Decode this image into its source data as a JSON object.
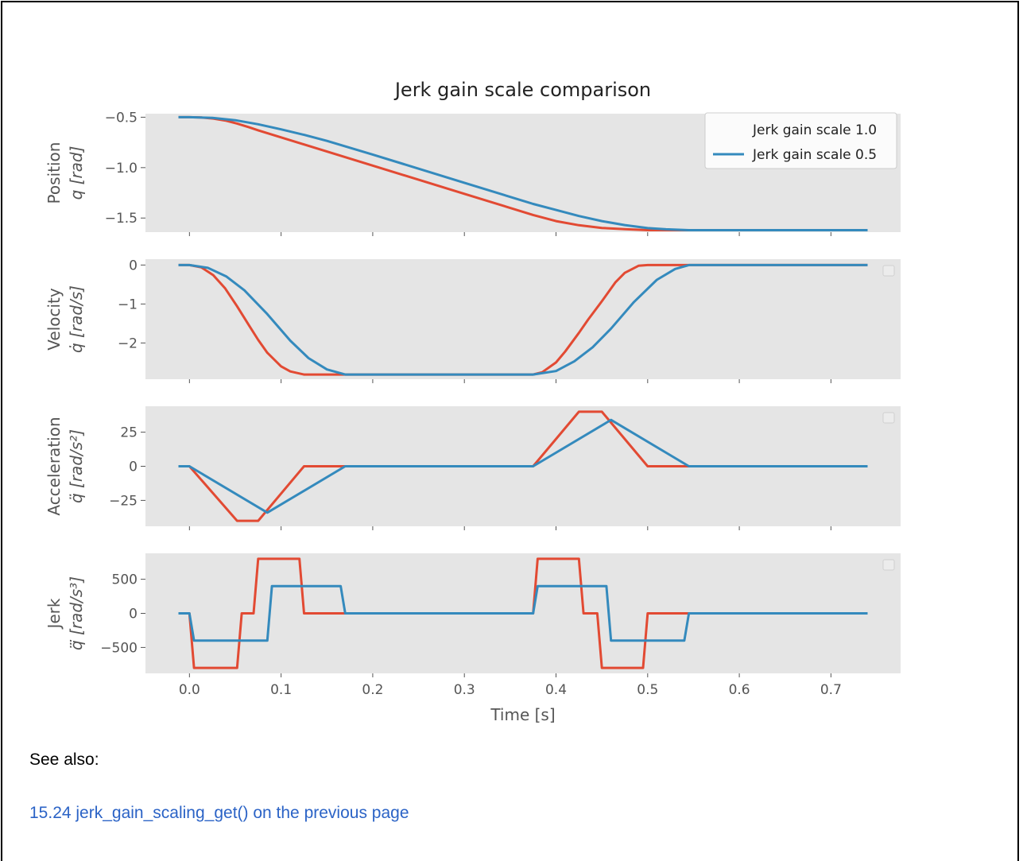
{
  "chart_data": {
    "type": "line",
    "title": "Jerk gain scale comparison",
    "xlabel": "Time [s]",
    "xlim": [
      -0.048,
      0.776
    ],
    "xticks": [
      0.0,
      0.1,
      0.2,
      0.3,
      0.4,
      0.5,
      0.6,
      0.7
    ],
    "xtick_labels": [
      "0.0",
      "0.1",
      "0.2",
      "0.3",
      "0.4",
      "0.5",
      "0.6",
      "0.7"
    ],
    "style": "ggplot-like grey background, no grid",
    "legend": {
      "location": "top-right of first panel",
      "entries": [
        "Jerk gain scale 1.0",
        "Jerk gain scale 0.5"
      ]
    },
    "series_colors": {
      "Jerk gain scale 1.0": "#e24a33",
      "Jerk gain scale 0.5": "#348abd"
    },
    "panels": [
      {
        "name": "position",
        "ylabel_line1": "Position",
        "ylabel_line2": "q [rad]",
        "ylim": [
          -1.64,
          -0.465
        ],
        "yticks": [
          -0.5,
          -1.0,
          -1.5
        ],
        "ytick_labels": [
          "−0.5",
          "−1.0",
          "−1.5"
        ],
        "series": [
          {
            "name": "Jerk gain scale 1.0",
            "x": [
              -0.012,
              0.0,
              0.013,
              0.026,
              0.039,
              0.052,
              0.065,
              0.075,
              0.1,
              0.125,
              0.15,
              0.2,
              0.3,
              0.375,
              0.4,
              0.425,
              0.45,
              0.475,
              0.5,
              0.55,
              0.6,
              0.7,
              0.74
            ],
            "y": [
              -0.5,
              -0.5,
              -0.503,
              -0.513,
              -0.533,
              -0.563,
              -0.6,
              -0.63,
              -0.7,
              -0.77,
              -0.84,
              -0.98,
              -1.26,
              -1.47,
              -1.53,
              -1.571,
              -1.598,
              -1.61,
              -1.62,
              -1.62,
              -1.62,
              -1.62,
              -1.62
            ]
          },
          {
            "name": "Jerk gain scale 0.5",
            "x": [
              -0.012,
              0.0,
              0.025,
              0.05,
              0.075,
              0.1,
              0.125,
              0.15,
              0.2,
              0.3,
              0.375,
              0.4,
              0.425,
              0.45,
              0.475,
              0.5,
              0.52,
              0.545,
              0.6,
              0.7,
              0.74
            ],
            "y": [
              -0.5,
              -0.5,
              -0.507,
              -0.53,
              -0.57,
              -0.62,
              -0.675,
              -0.735,
              -0.87,
              -1.15,
              -1.36,
              -1.42,
              -1.48,
              -1.53,
              -1.57,
              -1.6,
              -1.612,
              -1.62,
              -1.62,
              -1.62,
              -1.62
            ]
          }
        ]
      },
      {
        "name": "velocity",
        "ylabel_line1": "Velocity",
        "ylabel_line2": "q̇ [rad/s]",
        "ylim": [
          -2.93,
          0.15
        ],
        "yticks": [
          0,
          -1,
          -2
        ],
        "ytick_labels": [
          "0",
          "−1",
          "−2"
        ],
        "series": [
          {
            "name": "Jerk gain scale 1.0",
            "x": [
              -0.012,
              0.0,
              0.013,
              0.026,
              0.039,
              0.052,
              0.065,
              0.075,
              0.085,
              0.1,
              0.11,
              0.125,
              0.15,
              0.2,
              0.3,
              0.375,
              0.385,
              0.4,
              0.41,
              0.425,
              0.435,
              0.45,
              0.465,
              0.475,
              0.49,
              0.5,
              0.55,
              0.6,
              0.7,
              0.74
            ],
            "y": [
              0,
              0,
              -0.06,
              -0.26,
              -0.6,
              -1.06,
              -1.55,
              -1.92,
              -2.25,
              -2.6,
              -2.73,
              -2.81,
              -2.81,
              -2.81,
              -2.81,
              -2.81,
              -2.75,
              -2.5,
              -2.22,
              -1.74,
              -1.4,
              -0.93,
              -0.44,
              -0.2,
              -0.02,
              0,
              0,
              0,
              0,
              0
            ]
          },
          {
            "name": "Jerk gain scale 0.5",
            "x": [
              -0.012,
              0.0,
              0.02,
              0.04,
              0.06,
              0.085,
              0.11,
              0.13,
              0.15,
              0.17,
              0.2,
              0.3,
              0.375,
              0.4,
              0.42,
              0.44,
              0.46,
              0.485,
              0.51,
              0.53,
              0.545,
              0.6,
              0.7,
              0.74
            ],
            "y": [
              0,
              0,
              -0.07,
              -0.29,
              -0.65,
              -1.26,
              -1.94,
              -2.39,
              -2.68,
              -2.81,
              -2.81,
              -2.81,
              -2.81,
              -2.72,
              -2.47,
              -2.11,
              -1.63,
              -0.95,
              -0.38,
              -0.1,
              0,
              0,
              0,
              0
            ]
          }
        ]
      },
      {
        "name": "acceleration",
        "ylabel_line1": "Acceleration",
        "ylabel_line2": "q̈ [rad/s²]",
        "ylim": [
          -44,
          44
        ],
        "yticks": [
          25,
          0,
          -25
        ],
        "ytick_labels": [
          "25",
          "0",
          "−25"
        ],
        "series": [
          {
            "name": "Jerk gain scale 1.0",
            "x": [
              -0.012,
              0.0,
              0.052,
              0.075,
              0.125,
              0.17,
              0.375,
              0.425,
              0.45,
              0.5,
              0.545,
              0.74
            ],
            "y": [
              0,
              0,
              -40,
              -40,
              0,
              0,
              0,
              40,
              40,
              0,
              0,
              0
            ]
          },
          {
            "name": "Jerk gain scale 0.5",
            "x": [
              -0.012,
              0.0,
              0.085,
              0.17,
              0.375,
              0.46,
              0.545,
              0.74
            ],
            "y": [
              0,
              0,
              -34,
              0,
              0,
              34,
              0,
              0
            ]
          }
        ]
      },
      {
        "name": "jerk",
        "ylabel_line1": "Jerk",
        "ylabel_line2": "q⃛ [rad/s³]",
        "ylim": [
          -880,
          880
        ],
        "yticks": [
          500,
          0,
          -500
        ],
        "ytick_labels": [
          "500",
          "0",
          "−500"
        ],
        "series": [
          {
            "name": "Jerk gain scale 1.0",
            "x": [
              -0.012,
              0.0,
              0.005,
              0.052,
              0.057,
              0.07,
              0.075,
              0.08,
              0.12,
              0.125,
              0.13,
              0.375,
              0.38,
              0.425,
              0.43,
              0.445,
              0.45,
              0.455,
              0.495,
              0.5,
              0.505,
              0.74
            ],
            "y": [
              0,
              0,
              -800,
              -800,
              0,
              0,
              800,
              800,
              800,
              0,
              0,
              0,
              800,
              800,
              0,
              0,
              -800,
              -800,
              -800,
              0,
              0,
              0
            ]
          },
          {
            "name": "Jerk gain scale 0.5",
            "x": [
              -0.012,
              0.0,
              0.005,
              0.085,
              0.09,
              0.165,
              0.17,
              0.375,
              0.38,
              0.455,
              0.46,
              0.54,
              0.545,
              0.74
            ],
            "y": [
              0,
              0,
              -400,
              -400,
              400,
              400,
              0,
              0,
              400,
              400,
              -400,
              -400,
              0,
              0
            ]
          }
        ]
      }
    ]
  },
  "see_also": {
    "heading": "See also:",
    "link_text": "15.24 jerk_gain_scaling_get() on the previous page"
  }
}
